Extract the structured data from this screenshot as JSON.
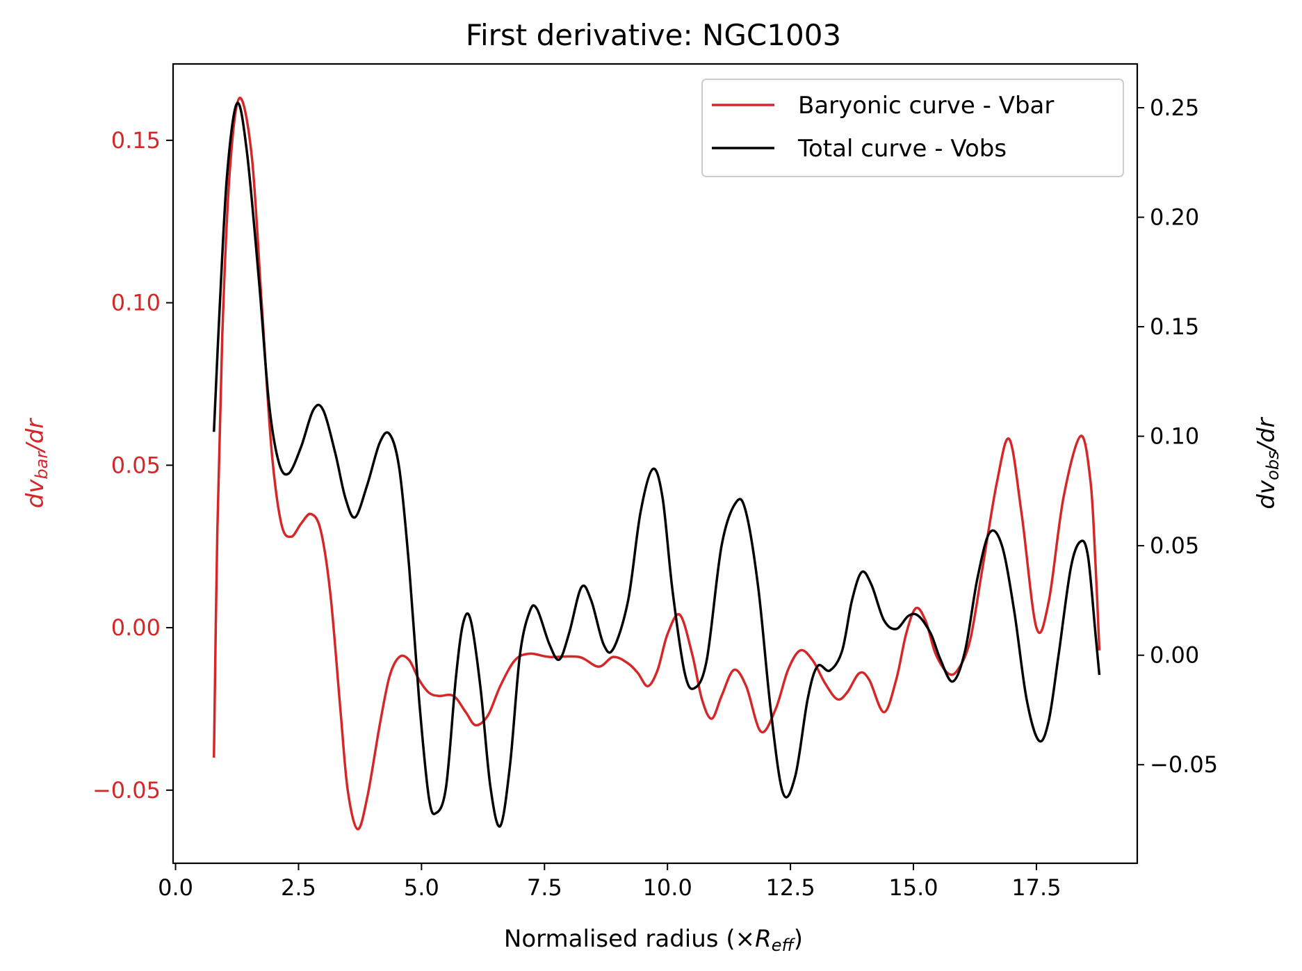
{
  "chart_data": {
    "type": "line",
    "title": "First derivative: NGC1003",
    "xlabel": {
      "main": "Normalised radius (×",
      "italic": "R",
      "sub": "eff",
      "close": ")"
    },
    "ylabel_left": {
      "italic": "dv",
      "sub": "bar",
      "rest": "/dr"
    },
    "ylabel_right": {
      "italic": "dv",
      "sub": "obs",
      "rest": "/dr"
    },
    "xlim": [
      -0.05,
      19.55
    ],
    "ylim_left": [
      -0.0725,
      0.1735
    ],
    "ylim_right": [
      -0.095,
      0.27
    ],
    "x_ticks": [
      0.0,
      2.5,
      5.0,
      7.5,
      10.0,
      12.5,
      15.0,
      17.5
    ],
    "x_tick_labels": [
      "0.0",
      "2.5",
      "5.0",
      "7.5",
      "10.0",
      "12.5",
      "15.0",
      "17.5"
    ],
    "y_left_ticks": [
      -0.05,
      0.0,
      0.05,
      0.1,
      0.15
    ],
    "y_left_tick_labels": [
      "−0.05",
      "0.00",
      "0.05",
      "0.10",
      "0.15"
    ],
    "y_right_ticks": [
      -0.05,
      0.0,
      0.05,
      0.1,
      0.15,
      0.2,
      0.25
    ],
    "y_right_tick_labels": [
      "−0.05",
      "0.00",
      "0.05",
      "0.10",
      "0.15",
      "0.20",
      "0.25"
    ],
    "legend_position": "top-right",
    "grid": false,
    "series": [
      {
        "name": "Baryonic curve - Vbar",
        "axis": "left",
        "color": "#d62728",
        "points": [
          [
            0.78,
            -0.04
          ],
          [
            0.85,
            0.03
          ],
          [
            0.95,
            0.09
          ],
          [
            1.1,
            0.14
          ],
          [
            1.3,
            0.163
          ],
          [
            1.55,
            0.145
          ],
          [
            1.75,
            0.1
          ],
          [
            1.95,
            0.055
          ],
          [
            2.15,
            0.032
          ],
          [
            2.35,
            0.028
          ],
          [
            2.55,
            0.032
          ],
          [
            2.75,
            0.035
          ],
          [
            2.95,
            0.03
          ],
          [
            3.15,
            0.01
          ],
          [
            3.35,
            -0.025
          ],
          [
            3.5,
            -0.05
          ],
          [
            3.7,
            -0.062
          ],
          [
            3.9,
            -0.052
          ],
          [
            4.15,
            -0.03
          ],
          [
            4.35,
            -0.015
          ],
          [
            4.55,
            -0.009
          ],
          [
            4.75,
            -0.01
          ],
          [
            4.95,
            -0.016
          ],
          [
            5.15,
            -0.02
          ],
          [
            5.35,
            -0.021
          ],
          [
            5.65,
            -0.021
          ],
          [
            5.9,
            -0.026
          ],
          [
            6.1,
            -0.03
          ],
          [
            6.35,
            -0.027
          ],
          [
            6.6,
            -0.018
          ],
          [
            6.9,
            -0.01
          ],
          [
            7.2,
            -0.008
          ],
          [
            7.6,
            -0.009
          ],
          [
            8.2,
            -0.009
          ],
          [
            8.6,
            -0.012
          ],
          [
            8.9,
            -0.009
          ],
          [
            9.2,
            -0.011
          ],
          [
            9.4,
            -0.014
          ],
          [
            9.6,
            -0.018
          ],
          [
            9.8,
            -0.013
          ],
          [
            10.0,
            -0.002
          ],
          [
            10.25,
            0.004
          ],
          [
            10.5,
            -0.008
          ],
          [
            10.7,
            -0.022
          ],
          [
            10.9,
            -0.028
          ],
          [
            11.1,
            -0.021
          ],
          [
            11.35,
            -0.013
          ],
          [
            11.6,
            -0.018
          ],
          [
            11.9,
            -0.032
          ],
          [
            12.2,
            -0.025
          ],
          [
            12.45,
            -0.013
          ],
          [
            12.7,
            -0.007
          ],
          [
            12.95,
            -0.01
          ],
          [
            13.2,
            -0.017
          ],
          [
            13.45,
            -0.022
          ],
          [
            13.65,
            -0.02
          ],
          [
            13.9,
            -0.014
          ],
          [
            14.1,
            -0.016
          ],
          [
            14.4,
            -0.026
          ],
          [
            14.65,
            -0.016
          ],
          [
            14.85,
            -0.002
          ],
          [
            15.05,
            0.006
          ],
          [
            15.25,
            0.002
          ],
          [
            15.45,
            -0.008
          ],
          [
            15.7,
            -0.014
          ],
          [
            15.9,
            -0.013
          ],
          [
            16.15,
            -0.004
          ],
          [
            16.4,
            0.018
          ],
          [
            16.7,
            0.045
          ],
          [
            16.95,
            0.058
          ],
          [
            17.2,
            0.035
          ],
          [
            17.5,
            0.0
          ],
          [
            17.75,
            0.008
          ],
          [
            18.05,
            0.04
          ],
          [
            18.4,
            0.059
          ],
          [
            18.6,
            0.045
          ],
          [
            18.7,
            0.02
          ],
          [
            18.78,
            -0.007
          ]
        ]
      },
      {
        "name": "Total curve - Vobs",
        "axis": "right",
        "color": "#000000",
        "points": [
          [
            0.78,
            0.102
          ],
          [
            0.9,
            0.16
          ],
          [
            1.05,
            0.22
          ],
          [
            1.25,
            0.252
          ],
          [
            1.45,
            0.23
          ],
          [
            1.7,
            0.17
          ],
          [
            1.9,
            0.115
          ],
          [
            2.1,
            0.088
          ],
          [
            2.3,
            0.083
          ],
          [
            2.55,
            0.095
          ],
          [
            2.8,
            0.112
          ],
          [
            3.0,
            0.112
          ],
          [
            3.25,
            0.092
          ],
          [
            3.45,
            0.072
          ],
          [
            3.65,
            0.063
          ],
          [
            3.9,
            0.078
          ],
          [
            4.15,
            0.097
          ],
          [
            4.35,
            0.101
          ],
          [
            4.55,
            0.085
          ],
          [
            4.75,
            0.04
          ],
          [
            4.95,
            -0.02
          ],
          [
            5.15,
            -0.065
          ],
          [
            5.3,
            -0.072
          ],
          [
            5.5,
            -0.06
          ],
          [
            5.7,
            -0.01
          ],
          [
            5.85,
            0.015
          ],
          [
            6.0,
            0.016
          ],
          [
            6.2,
            -0.015
          ],
          [
            6.4,
            -0.06
          ],
          [
            6.6,
            -0.078
          ],
          [
            6.8,
            -0.05
          ],
          [
            7.0,
            0.0
          ],
          [
            7.2,
            0.02
          ],
          [
            7.35,
            0.021
          ],
          [
            7.6,
            0.005
          ],
          [
            7.8,
            -0.002
          ],
          [
            8.0,
            0.01
          ],
          [
            8.25,
            0.031
          ],
          [
            8.45,
            0.025
          ],
          [
            8.7,
            0.005
          ],
          [
            8.9,
            0.003
          ],
          [
            9.2,
            0.025
          ],
          [
            9.45,
            0.065
          ],
          [
            9.7,
            0.085
          ],
          [
            9.9,
            0.072
          ],
          [
            10.1,
            0.03
          ],
          [
            10.35,
            -0.008
          ],
          [
            10.55,
            -0.015
          ],
          [
            10.8,
            -0.002
          ],
          [
            11.1,
            0.05
          ],
          [
            11.4,
            0.07
          ],
          [
            11.6,
            0.065
          ],
          [
            11.85,
            0.03
          ],
          [
            12.1,
            -0.025
          ],
          [
            12.35,
            -0.063
          ],
          [
            12.6,
            -0.055
          ],
          [
            12.85,
            -0.02
          ],
          [
            13.05,
            -0.005
          ],
          [
            13.3,
            -0.007
          ],
          [
            13.55,
            0.002
          ],
          [
            13.75,
            0.025
          ],
          [
            13.95,
            0.038
          ],
          [
            14.15,
            0.032
          ],
          [
            14.4,
            0.016
          ],
          [
            14.65,
            0.012
          ],
          [
            14.9,
            0.018
          ],
          [
            15.1,
            0.018
          ],
          [
            15.35,
            0.01
          ],
          [
            15.55,
            -0.002
          ],
          [
            15.8,
            -0.012
          ],
          [
            16.05,
            0.002
          ],
          [
            16.3,
            0.035
          ],
          [
            16.55,
            0.056
          ],
          [
            16.8,
            0.05
          ],
          [
            17.05,
            0.02
          ],
          [
            17.3,
            -0.02
          ],
          [
            17.55,
            -0.039
          ],
          [
            17.75,
            -0.03
          ],
          [
            17.95,
            0.0
          ],
          [
            18.2,
            0.04
          ],
          [
            18.4,
            0.052
          ],
          [
            18.55,
            0.045
          ],
          [
            18.7,
            0.01
          ],
          [
            18.78,
            -0.009
          ]
        ]
      }
    ]
  }
}
